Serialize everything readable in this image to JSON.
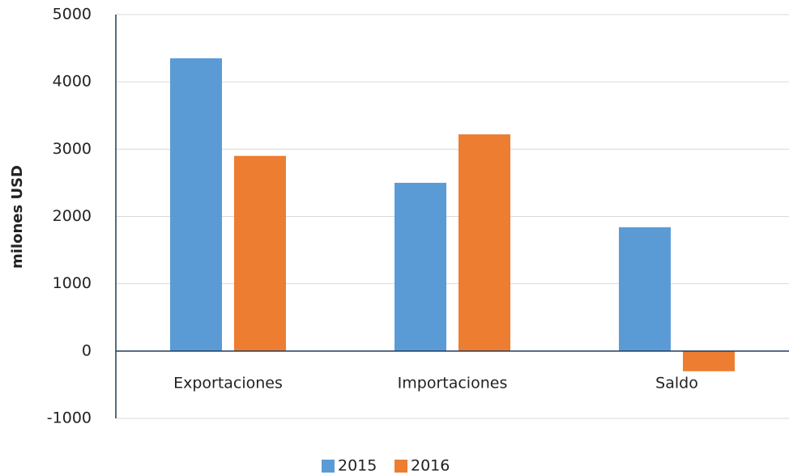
{
  "chart_data": {
    "type": "bar",
    "y_label": "milones USD",
    "categories": [
      "Exportaciones",
      "Importaciones",
      "Saldo"
    ],
    "series": [
      {
        "name": "2015",
        "color": "#5b9bd5",
        "values": [
          4350,
          2500,
          1840
        ]
      },
      {
        "name": "2016",
        "color": "#ed7d31",
        "values": [
          2900,
          3220,
          -300
        ]
      }
    ],
    "ylim": [
      -1000,
      5000
    ],
    "yticks": [
      -1000,
      0,
      1000,
      2000,
      3000,
      4000,
      5000
    ],
    "grid": true,
    "legend": "bottom"
  }
}
